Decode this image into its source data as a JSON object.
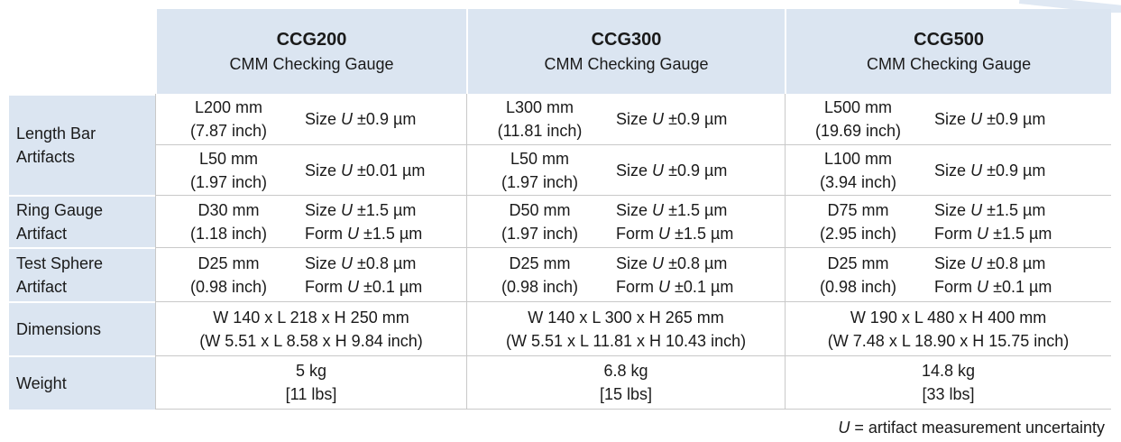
{
  "models": [
    {
      "name": "CCG200",
      "subtitle": "CMM Checking Gauge"
    },
    {
      "name": "CCG300",
      "subtitle": "CMM Checking Gauge"
    },
    {
      "name": "CCG500",
      "subtitle": "CMM Checking Gauge"
    }
  ],
  "rows": {
    "length_bar": {
      "label_line1": "Length Bar",
      "label_line2": "Artifacts"
    },
    "ring_gauge": {
      "label_line1": "Ring Gauge",
      "label_line2": "Artifact"
    },
    "test_sphere": {
      "label_line1": "Test Sphere",
      "label_line2": "Artifact"
    },
    "dimensions": {
      "label": "Dimensions"
    },
    "weight": {
      "label": "Weight"
    }
  },
  "uncertainty_symbol": "U",
  "size_prefix": "Size",
  "form_prefix": "Form",
  "length_bar": [
    {
      "long_mm": "L200 mm",
      "long_inch": "(7.87 inch)",
      "long_u": "±0.9 µm",
      "short_mm": "L50 mm",
      "short_inch": "(1.97 inch)",
      "short_u": "±0.01 µm"
    },
    {
      "long_mm": "L300 mm",
      "long_inch": "(11.81 inch)",
      "long_u": "±0.9 µm",
      "short_mm": "L50 mm",
      "short_inch": "(1.97 inch)",
      "short_u": "±0.9 µm"
    },
    {
      "long_mm": "L500 mm",
      "long_inch": "(19.69 inch)",
      "long_u": "±0.9 µm",
      "short_mm": "L100 mm",
      "short_inch": "(3.94 inch)",
      "short_u": "±0.9 µm"
    }
  ],
  "ring_gauge": [
    {
      "mm": "D30 mm",
      "inch": "(1.18 inch)",
      "size_u": "±1.5 µm",
      "form_u": "±1.5 µm"
    },
    {
      "mm": "D50 mm",
      "inch": "(1.97 inch)",
      "size_u": "±1.5 µm",
      "form_u": "±1.5 µm"
    },
    {
      "mm": "D75 mm",
      "inch": "(2.95 inch)",
      "size_u": "±1.5 µm",
      "form_u": "±1.5 µm"
    }
  ],
  "test_sphere": [
    {
      "mm": "D25 mm",
      "inch": "(0.98 inch)",
      "size_u": "±0.8 µm",
      "form_u": "±0.1 µm"
    },
    {
      "mm": "D25 mm",
      "inch": "(0.98 inch)",
      "size_u": "±0.8 µm",
      "form_u": "±0.1 µm"
    },
    {
      "mm": "D25 mm",
      "inch": "(0.98 inch)",
      "size_u": "±0.8 µm",
      "form_u": "±0.1 µm"
    }
  ],
  "dimensions": [
    {
      "mm": "W 140 x L 218 x H 250 mm",
      "inch": "(W 5.51 x L 8.58 x H 9.84 inch)"
    },
    {
      "mm": "W 140 x L 300 x H 265 mm",
      "inch": "(W 5.51 x L 11.81 x H 10.43 inch)"
    },
    {
      "mm": "W 190 x L 480 x H 400 mm",
      "inch": "(W 7.48 x L 18.90 x H 15.75 inch)"
    }
  ],
  "weight": [
    {
      "kg": "5 kg",
      "lbs": "[11 lbs]"
    },
    {
      "kg": "6.8 kg",
      "lbs": "[15 lbs]"
    },
    {
      "kg": "14.8 kg",
      "lbs": "[33 lbs]"
    }
  ],
  "footnote": {
    "symbol": "U",
    "text": " = artifact measurement uncertainty"
  }
}
